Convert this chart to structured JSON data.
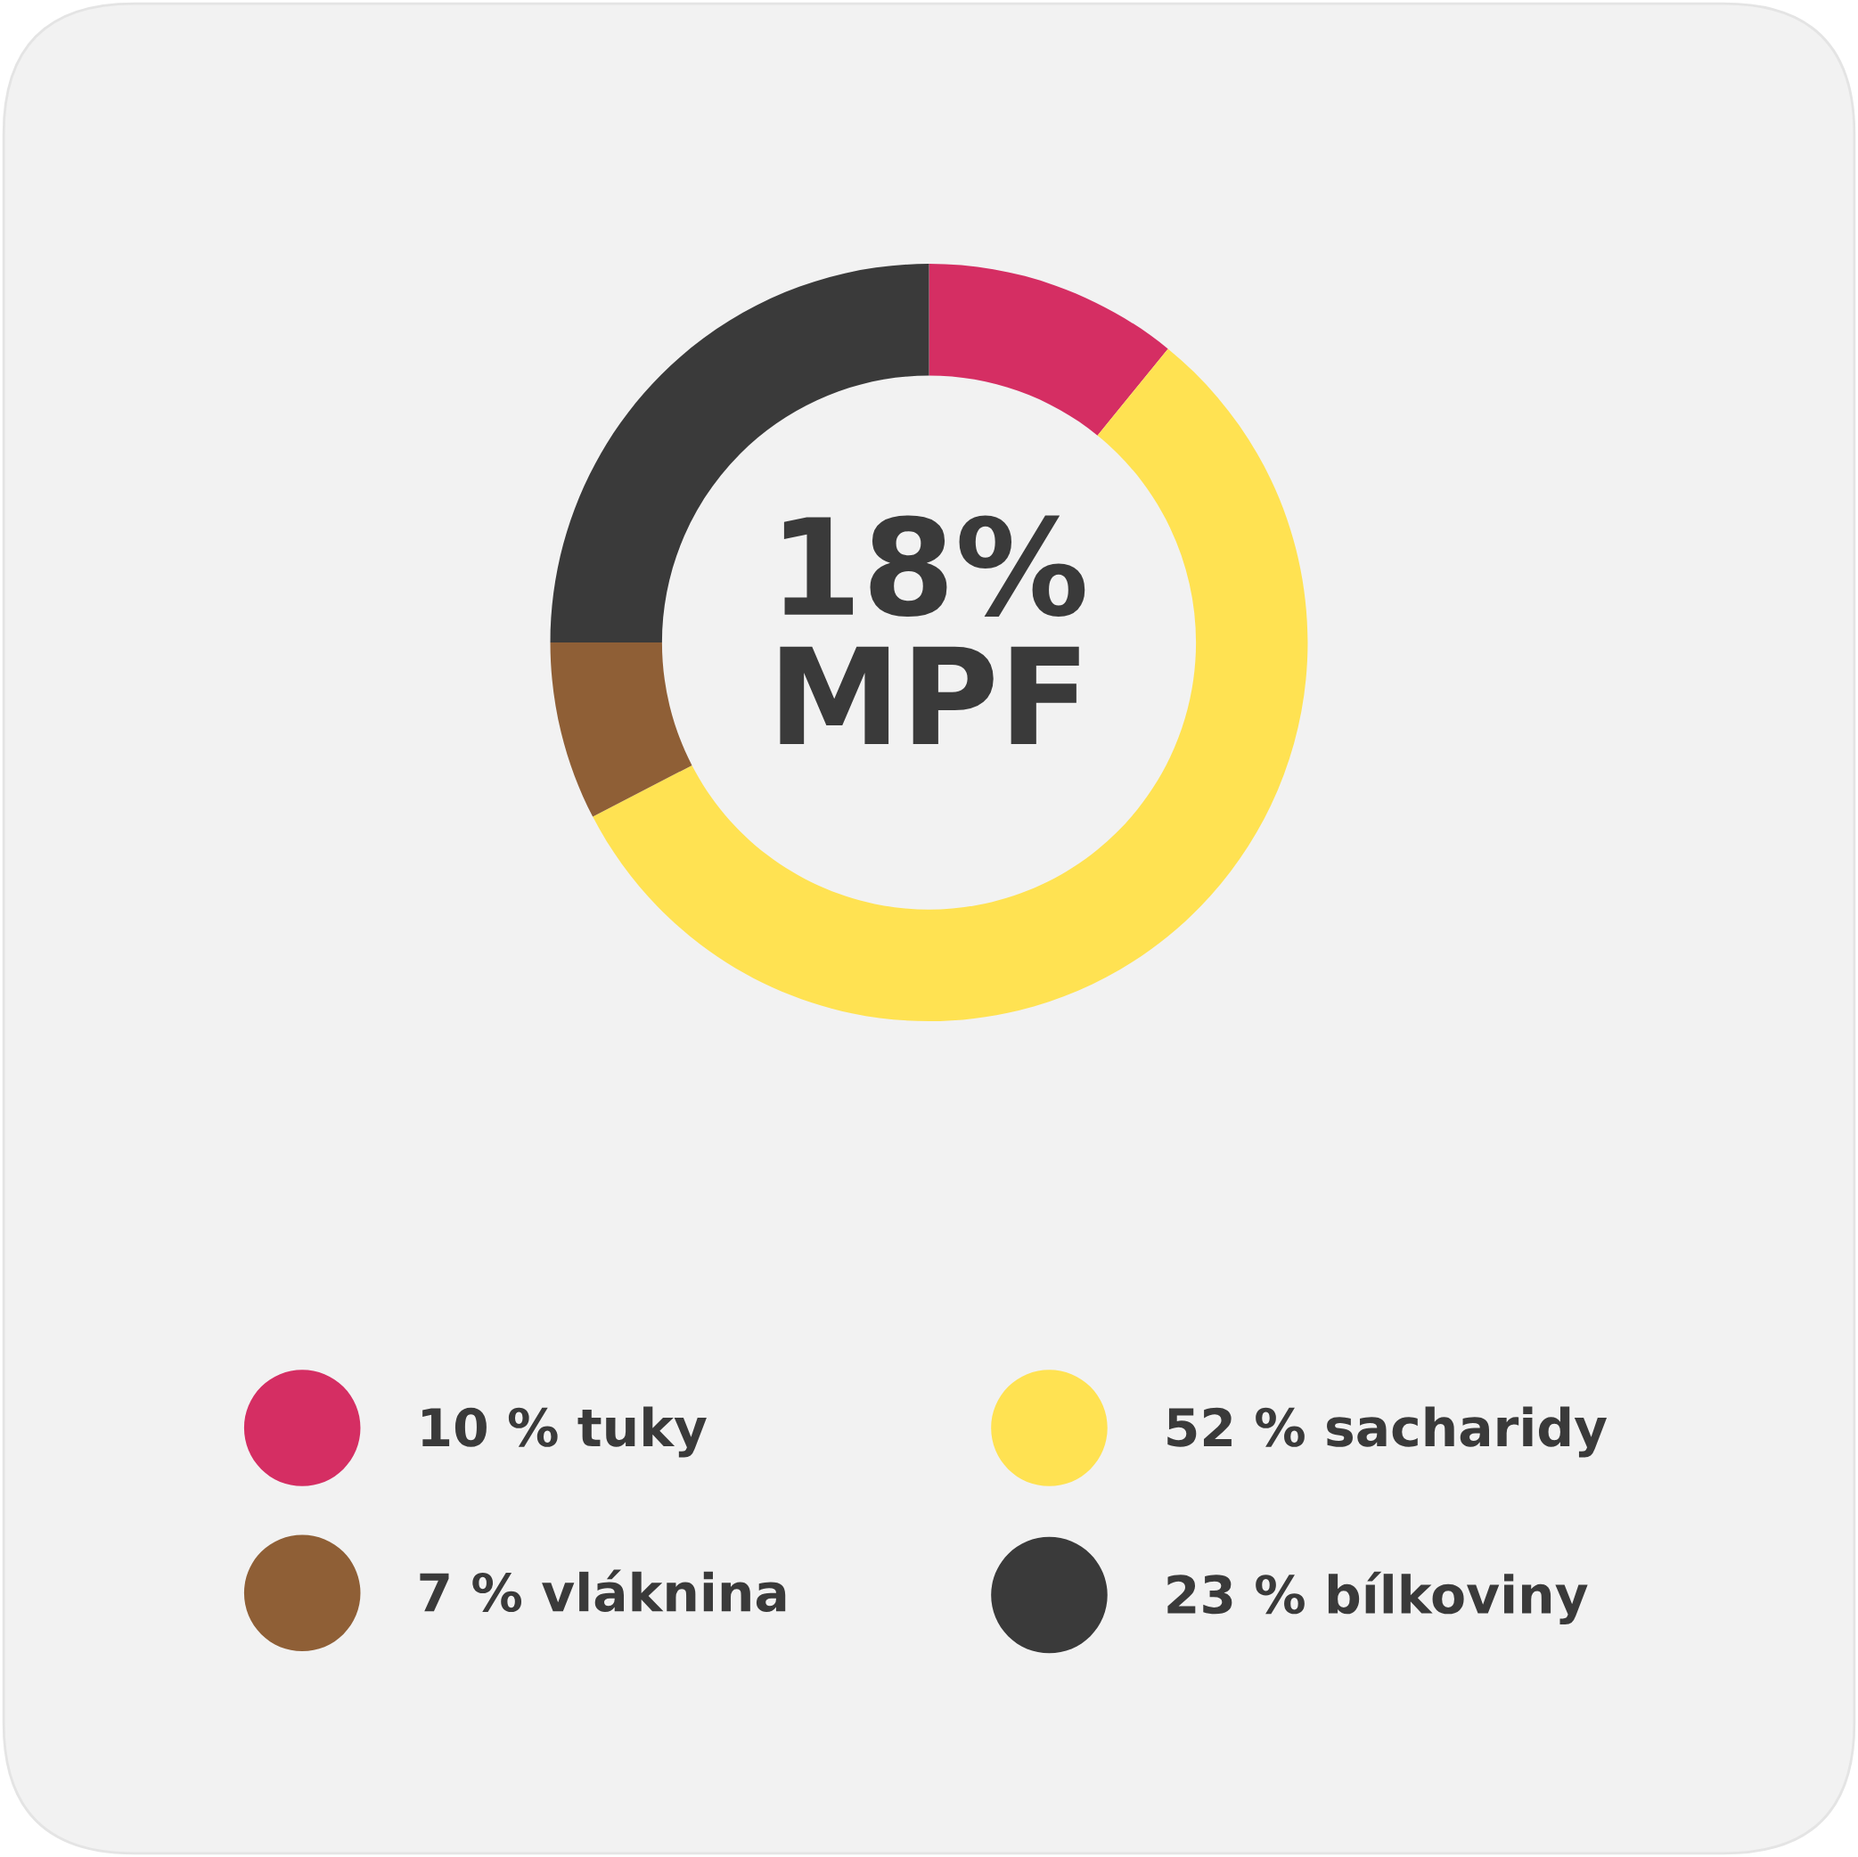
{
  "chart_data": {
    "type": "donut",
    "categories": [
      "tuky",
      "sacharidy",
      "vláknina",
      "bílkoviny"
    ],
    "values": [
      10,
      52,
      7,
      23
    ],
    "colors": [
      "#d52e63",
      "#ffe252",
      "#8f5f36",
      "#3a3a3a"
    ],
    "value_labels": [
      "10 %",
      "52 %",
      "7 %",
      "23 %"
    ],
    "annotations": [
      "18%\nMPF"
    ],
    "legend": "bottom"
  }
}
